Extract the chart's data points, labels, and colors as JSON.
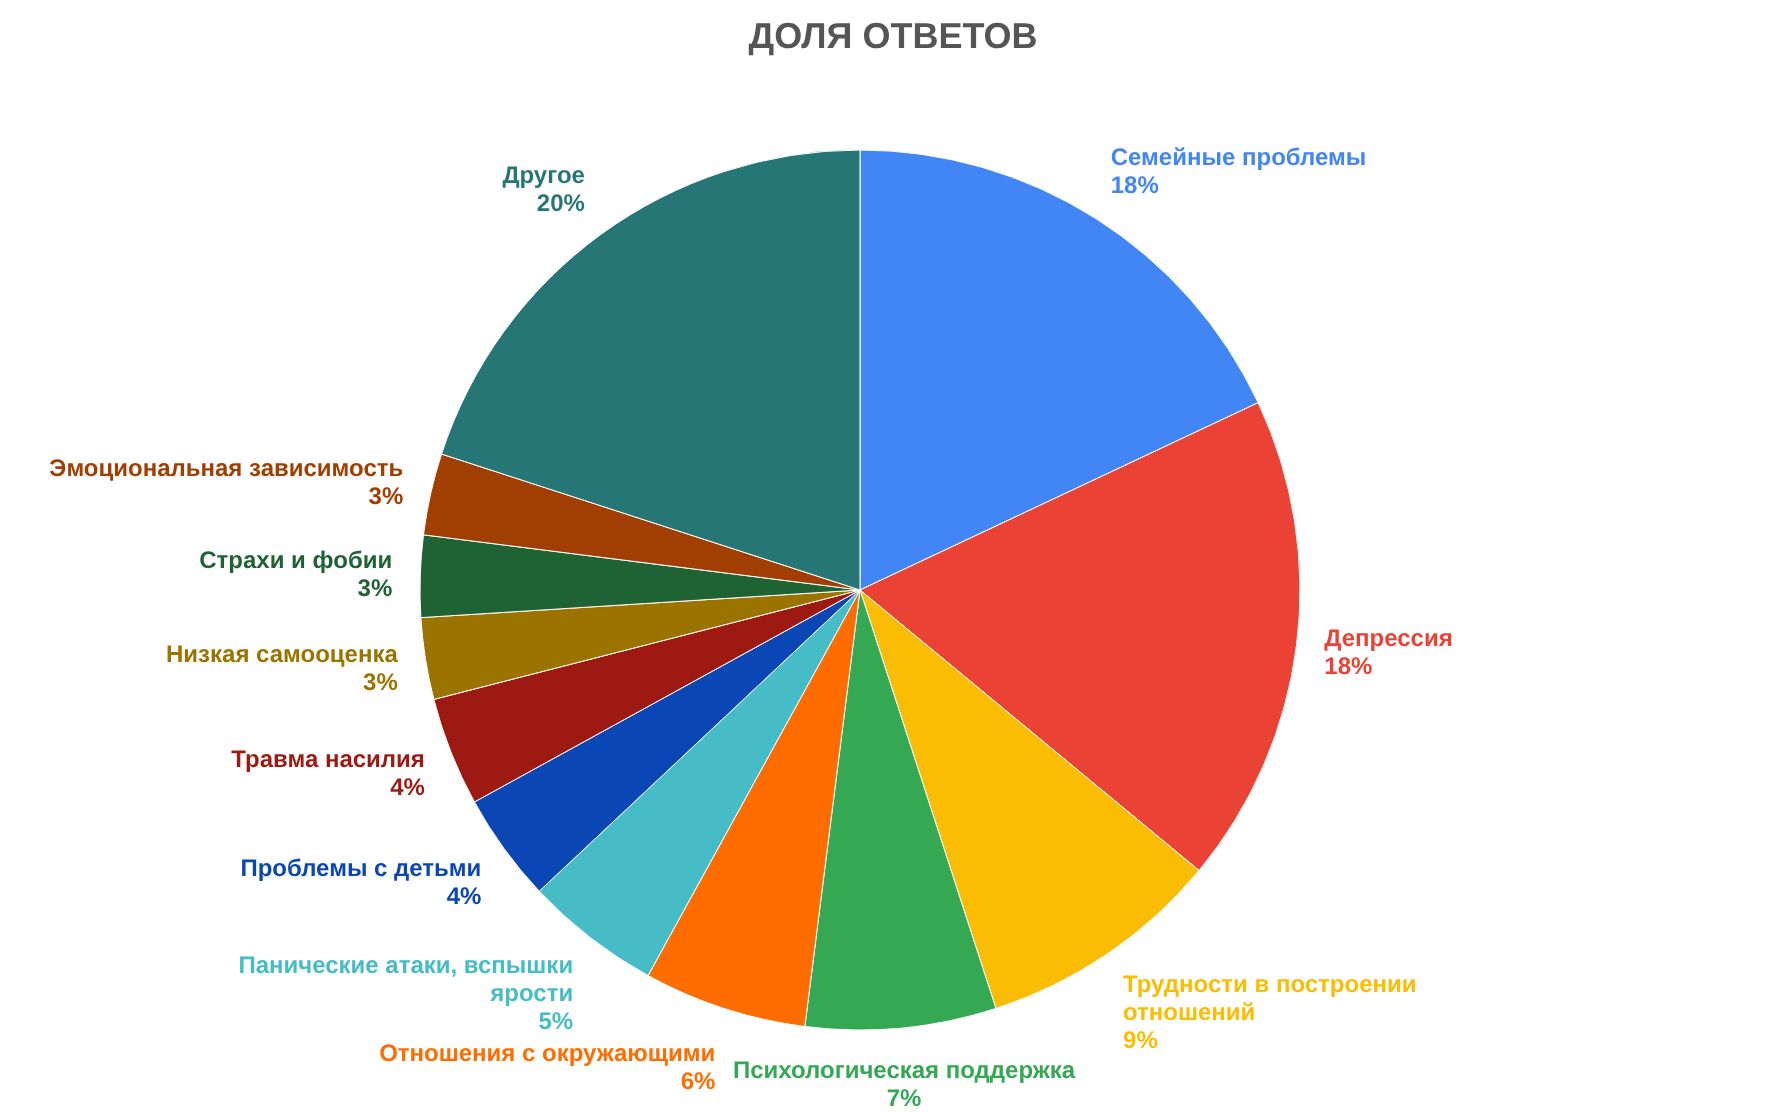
{
  "chart_data": {
    "type": "pie",
    "title": "ДОЛЯ ОТВЕТОВ",
    "categories": [
      "Семейные проблемы",
      "Депрессия",
      "Трудности в построении отношений",
      "Психологическая поддержка",
      "Отношения с окружающими",
      "Панические атаки, вспышки ярости",
      "Проблемы с детьми",
      "Травма насилия",
      "Низкая самооценка",
      "Страхи и фобии",
      "Эмоциональная зависимость",
      "Другое"
    ],
    "values": [
      18,
      18,
      9,
      7,
      6,
      5,
      4,
      4,
      3,
      3,
      3,
      20
    ],
    "colors": [
      "#4285f4",
      "#ea4335",
      "#fbbc04",
      "#34a853",
      "#ff6d01",
      "#46bdc6",
      "#0b47b4",
      "#9c1a12",
      "#9b7400",
      "#1f6335",
      "#a13f02",
      "#267676"
    ],
    "value_labels": [
      "18%",
      "18%",
      "9%",
      "7%",
      "6%",
      "5%",
      "4%",
      "4%",
      "3%",
      "3%",
      "3%",
      "20%"
    ],
    "legend": false
  }
}
